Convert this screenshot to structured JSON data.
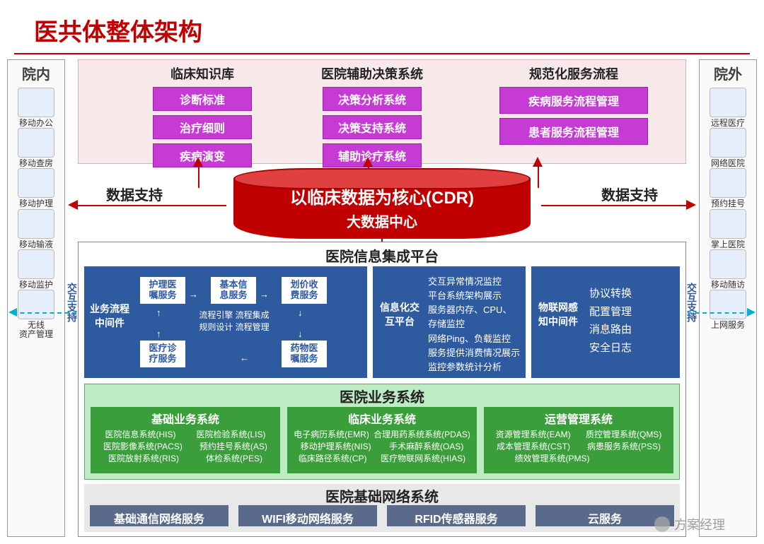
{
  "title": "医共体整体架构",
  "side_left": {
    "heading": "院内",
    "items": [
      {
        "label": "移动办公"
      },
      {
        "label": "移动查房"
      },
      {
        "label": "移动护理"
      },
      {
        "label": "移动输液"
      },
      {
        "label": "移动监护"
      },
      {
        "label": "无线\n资产管理"
      }
    ]
  },
  "side_right": {
    "heading": "院外",
    "items": [
      {
        "label": "远程医疗"
      },
      {
        "label": "网络医院"
      },
      {
        "label": "预约挂号"
      },
      {
        "label": "掌上医院"
      },
      {
        "label": "移动随访"
      },
      {
        "label": "上网服务"
      }
    ]
  },
  "pink": {
    "columns": [
      {
        "title": "临床知识库",
        "tags": [
          "诊断标准",
          "治疗细则",
          "疾病演变"
        ],
        "size": "small"
      },
      {
        "title": "医院辅助决策系统",
        "tags": [
          "决策分析系统",
          "决策支持系统",
          "辅助诊疗系统"
        ],
        "size": "small"
      },
      {
        "title": "规范化服务流程",
        "tags": [
          "疾病服务流程管理",
          "患者服务流程管理"
        ],
        "size": "wide"
      }
    ]
  },
  "cdr": {
    "line1": "以临床数据为核心(CDR)",
    "line2": "大数据中心",
    "topcolor": "#e04040",
    "bodycolor": "#c00000"
  },
  "data_support": "数据支持",
  "side_blue_label": "交互支持",
  "platform_title": "医院信息集成平台",
  "blue1": {
    "mw_label": "业务流程\n中间件",
    "boxes": {
      "b1": "护理医\n嘱服务",
      "b2": "基本信\n息服务",
      "b3": "划价收\n费服务",
      "b4": "医疗诊\n疗服务",
      "b5": "药物医\n嘱服务"
    },
    "flow_txt": "流程引擎 流程集成\n规则设计 流程管理"
  },
  "blue2": {
    "label": "信息化交\n互平台",
    "lines": [
      "交互异常情况监控",
      "平台系统架构展示",
      "服务器内存、CPU、存储监控",
      "网络Ping、负载监控",
      "服务提供消费情况展示",
      "监控参数统计分析"
    ]
  },
  "blue3": {
    "label": "物联网感\n知中间件",
    "lines": [
      "协议转换",
      "配置管理",
      "消息路由",
      "安全日志"
    ]
  },
  "biz_title": "医院业务系统",
  "green": [
    {
      "title": "基础业务系统",
      "left": [
        "医院信息系统(HIS)",
        "医院影像系统(PACS)",
        "医院放射系统(RIS)"
      ],
      "right": [
        "医院检验系统(LIS)",
        "预约挂号系统(AS)",
        "体检系统(PES)"
      ]
    },
    {
      "title": "临床业务系统",
      "left": [
        "电子病历系统(EMR)",
        "移动护理系统(NIS)",
        "临床路径系统(CP)"
      ],
      "right": [
        "合理用药系统系统(PDAS)",
        "手术麻醉系统(OAS)",
        "医疗物联网系统(HIAS)"
      ]
    },
    {
      "title": "运营管理系统",
      "left": [
        "资源管理系统(EAM)",
        "成本管理系统(CST)",
        "绩效管理系统(PMS)"
      ],
      "right": [
        "质控管理系统(QMS)",
        "病患服务系统(PSS)"
      ]
    }
  ],
  "net_title": "医院基础网络系统",
  "grey": [
    "基础通信网络服务",
    "WIFI移动网络服务",
    "RFID传感器服务",
    "云服务"
  ],
  "watermark": "方案经理",
  "palette": {
    "red": "#c00000",
    "pinkbg": "#f7e9e9",
    "magenta": "#c63bd4",
    "blue": "#2e5aa0",
    "green": "#3a9e3a",
    "greenbg": "#bdebc3",
    "greybox": "#5a6a8a",
    "cyan": "#00b0d0"
  }
}
